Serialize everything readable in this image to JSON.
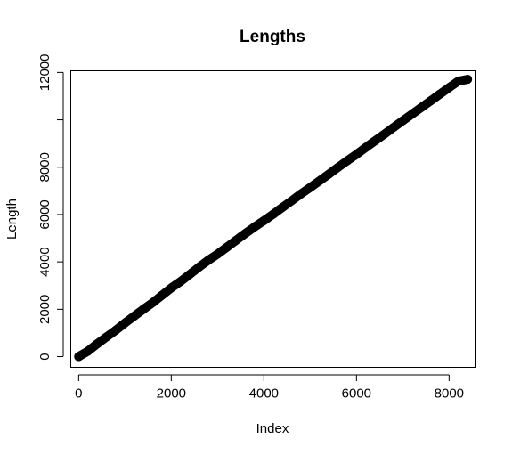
{
  "chart_data": {
    "type": "scatter",
    "title": "Lengths",
    "xlabel": "Index",
    "ylabel": "Length",
    "xlim": [
      -170,
      8580
    ],
    "ylim": [
      -450,
      12070
    ],
    "x_ticks": [
      0,
      2000,
      4000,
      6000,
      8000
    ],
    "y_ticks": [
      0,
      2000,
      4000,
      6000,
      8000,
      10000,
      12000
    ],
    "y_tick_labels": [
      "0",
      "2000",
      "4000",
      "6000",
      "8000",
      "",
      "12000"
    ],
    "marker_color": "#000000",
    "series": [
      {
        "x": [
          0,
          200,
          400,
          600,
          800,
          1000,
          1200,
          1400,
          1600,
          1800,
          2000,
          2200,
          2400,
          2600,
          2800,
          3000,
          3200,
          3400,
          3600,
          3800,
          4000,
          4200,
          4400,
          4600,
          4800,
          5000,
          5200,
          5400,
          5600,
          5800,
          6000,
          6200,
          6400,
          6600,
          6800,
          7000,
          7200,
          7400,
          7600,
          7800,
          8000,
          8200,
          8400
        ],
        "y": [
          0,
          230,
          540,
          830,
          1110,
          1420,
          1710,
          2000,
          2280,
          2590,
          2900,
          3170,
          3470,
          3780,
          4070,
          4330,
          4620,
          4910,
          5200,
          5480,
          5740,
          6010,
          6300,
          6580,
          6870,
          7140,
          7420,
          7700,
          7990,
          8270,
          8540,
          8830,
          9110,
          9390,
          9680,
          9960,
          10240,
          10520,
          10800,
          11080,
          11360,
          11630,
          11710
        ]
      }
    ]
  }
}
